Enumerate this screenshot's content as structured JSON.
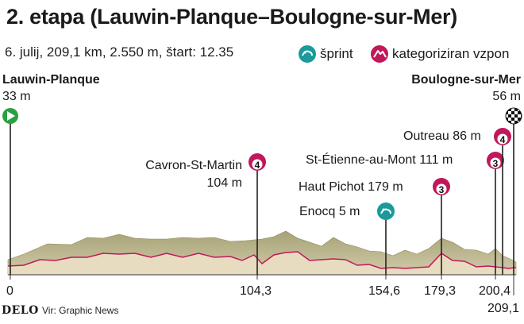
{
  "title": "2. etapa (Lauwin-Planque–Boulogne-sur-Mer)",
  "subtitle": "6. julij, 209,1 km, 2.550 m, štart: 12.35",
  "legend": {
    "sprint_label": "šprint",
    "climb_label": "kategoriziran vzpon"
  },
  "start": {
    "name": "Lauwin-Planque",
    "altitude": "33 m",
    "km_label": "0",
    "km": 0
  },
  "finish": {
    "name": "Boulogne-sur-Mer",
    "altitude": "56 m",
    "km_label": "209,1",
    "km": 209.1
  },
  "points": [
    {
      "type": "climb",
      "name": "Cavron-St-Martin",
      "altitude": "104 m",
      "category": "4",
      "km": 104.3,
      "km_label": "104,3"
    },
    {
      "type": "sprint",
      "name": "Enocq",
      "altitude": "5 m",
      "km": 154.6,
      "km_label": "154,6"
    },
    {
      "type": "climb",
      "name": "Haut Pichot",
      "altitude": "179 m",
      "category": "3",
      "km": 179.3,
      "km_label": "179,3"
    },
    {
      "type": "climb",
      "name": "St-Étienne-au-Mont",
      "altitude": "111 m",
      "category": "3",
      "km": 200.4,
      "km_label": "200,4"
    },
    {
      "type": "climb",
      "name": "Outreau",
      "altitude": "86 m",
      "category": "4",
      "km": 203.8
    }
  ],
  "colors": {
    "profile_top": "#b0ab80",
    "profile_body": "#e8dcc0",
    "profile_line": "#c0185a",
    "climb": "#c0185a",
    "sprint": "#1a9a9a",
    "start": "#2aa040"
  },
  "footer": {
    "logo": "DELO",
    "source": "Vir: Graphic News"
  }
}
